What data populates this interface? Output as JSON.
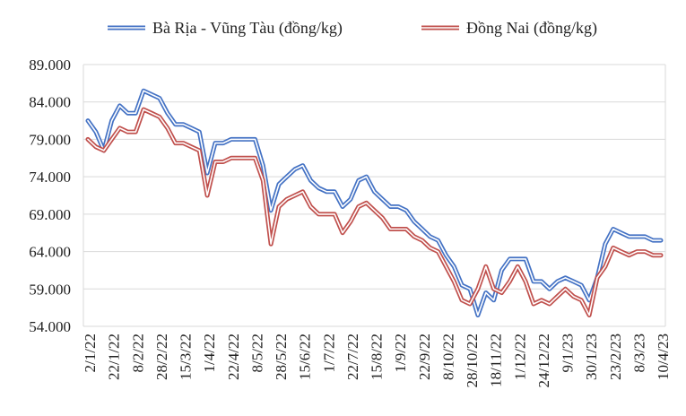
{
  "chart_data": {
    "type": "line",
    "title": "",
    "xlabel": "",
    "ylabel": "",
    "ylim": [
      54000,
      89000
    ],
    "y_ticks": [
      "54.000",
      "59.000",
      "64.000",
      "69.000",
      "74.000",
      "79.000",
      "84.000",
      "89.000"
    ],
    "x_tick_labels": [
      "2/1/22",
      "22/1/22",
      "8/2/22",
      "28/2/22",
      "15/3/22",
      "1/4/22",
      "22/4/22",
      "8/5/22",
      "28/5/22",
      "15/6/22",
      "1/7/22",
      "22/7/22",
      "15/8/22",
      "1/9/22",
      "22/9/22",
      "8/10/22",
      "28/10/22",
      "18/11/22",
      "1/12/22",
      "24/12/22",
      "9/1/23",
      "30/1/23",
      "23/2/23",
      "8/3/23",
      "10/4/23"
    ],
    "grid": true,
    "legend_position": "top",
    "series": [
      {
        "name": "Bà Rịa - Vũng Tàu (đồng/kg)",
        "color": "#4472c4",
        "values": [
          81500,
          80000,
          77500,
          81500,
          83500,
          82500,
          82500,
          85500,
          85000,
          84500,
          82500,
          81000,
          81000,
          80500,
          80000,
          74500,
          78500,
          78500,
          79000,
          79000,
          79000,
          79000,
          75500,
          69500,
          73000,
          74000,
          75000,
          75500,
          73500,
          72500,
          72000,
          72000,
          70000,
          71000,
          73500,
          74000,
          72000,
          71000,
          70000,
          70000,
          69500,
          68000,
          67000,
          66000,
          65500,
          63500,
          62000,
          59500,
          59000,
          55500,
          58500,
          57500,
          61500,
          63000,
          63000,
          63000,
          60000,
          60000,
          59000,
          60000,
          60500,
          60000,
          59500,
          57500,
          60500,
          65000,
          67000,
          66500,
          66000,
          66000,
          66000,
          65500,
          65500
        ]
      },
      {
        "name": "Đồng Nai (đồng/kg)",
        "color": "#c0504d",
        "values": [
          79000,
          78000,
          77500,
          79000,
          80500,
          80000,
          80000,
          83000,
          82500,
          82000,
          80500,
          78500,
          78500,
          78000,
          77500,
          71500,
          76000,
          76000,
          76500,
          76500,
          76500,
          76500,
          73500,
          65000,
          70000,
          71000,
          71500,
          72000,
          70000,
          69000,
          69000,
          69000,
          66500,
          68000,
          70000,
          70500,
          69500,
          68500,
          67000,
          67000,
          67000,
          66000,
          65500,
          64500,
          64000,
          62000,
          60000,
          57500,
          57000,
          59000,
          62000,
          59000,
          58500,
          60000,
          62000,
          60000,
          57000,
          57500,
          57000,
          58000,
          59000,
          58000,
          57500,
          55500,
          60500,
          62000,
          64500,
          64000,
          63500,
          64000,
          64000,
          63500,
          63500
        ]
      }
    ]
  }
}
